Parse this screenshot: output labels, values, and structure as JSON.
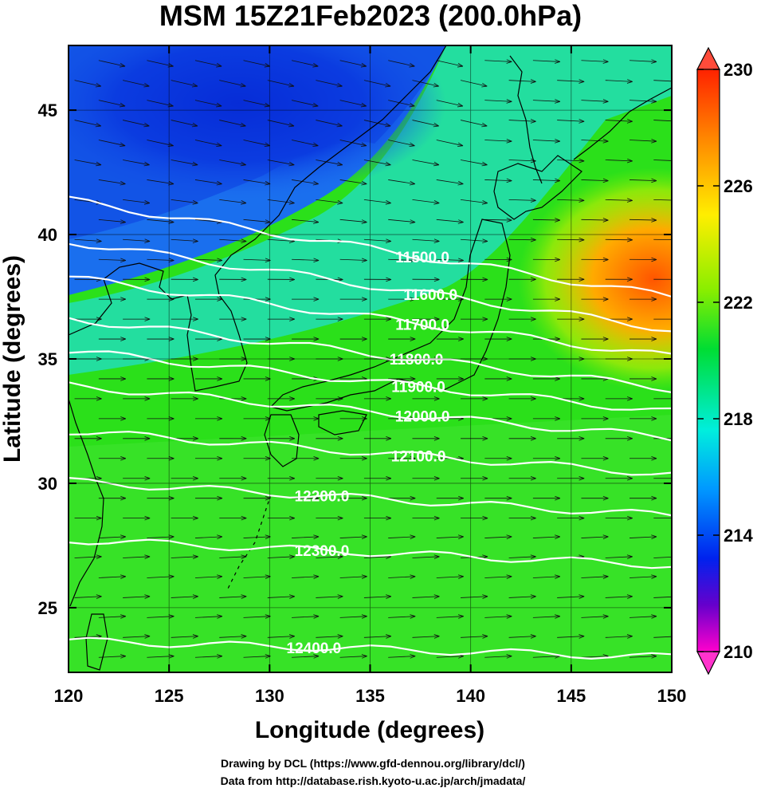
{
  "title": "MSM 15Z21Feb2023 (200.0hPa)",
  "axes": {
    "xlabel": "Longitude (degrees)",
    "ylabel": "Latitude  (degrees)",
    "xlim": [
      120,
      150
    ],
    "ylim": [
      22.4,
      47.6
    ],
    "xticks": [
      "120",
      "125",
      "130",
      "135",
      "140",
      "145",
      "150"
    ],
    "yticks": [
      "25",
      "30",
      "35",
      "40",
      "45"
    ]
  },
  "colorbar": {
    "min": 210,
    "max": 230,
    "labels": [
      "230",
      "226",
      "222",
      "218",
      "214",
      "210"
    ]
  },
  "colors": {
    "frame": "#000000",
    "contour": "#ffffff",
    "coast": "#000000"
  },
  "contour_labels": [
    {
      "text": "11500.0",
      "lon": 137.6,
      "lat": 39.1
    },
    {
      "text": "11600.0",
      "lon": 138.0,
      "lat": 37.6
    },
    {
      "text": "11700.0",
      "lon": 137.6,
      "lat": 36.4
    },
    {
      "text": "11800.0",
      "lon": 137.3,
      "lat": 35.0
    },
    {
      "text": "11900.0",
      "lon": 137.4,
      "lat": 33.9
    },
    {
      "text": "12000.0",
      "lon": 137.6,
      "lat": 32.7
    },
    {
      "text": "12100.0",
      "lon": 137.4,
      "lat": 31.1
    },
    {
      "text": "12200.0",
      "lon": 132.6,
      "lat": 29.5
    },
    {
      "text": "12300.0",
      "lon": 132.6,
      "lat": 27.3
    },
    {
      "text": "12400.0",
      "lon": 132.2,
      "lat": 23.4
    }
  ],
  "footer": {
    "line1": "Drawing by DCL (https://www.gfd-dennou.org/library/dcl/)",
    "line2": "Data from http://database.rish.kyoto-u.ac.jp/arch/jmadata/"
  }
}
